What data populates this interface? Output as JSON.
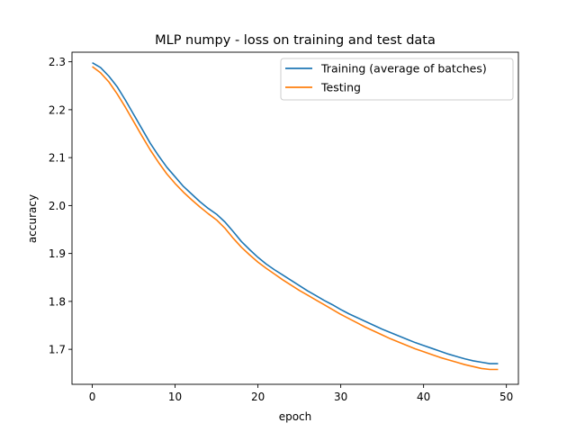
{
  "chart_data": {
    "type": "line",
    "title": "MLP numpy - loss on training and test data",
    "xlabel": "epoch",
    "ylabel": "accuracy",
    "xlim": [
      -2.45,
      51.45
    ],
    "ylim": [
      1.627,
      2.32
    ],
    "xticks": [
      0,
      10,
      20,
      30,
      40,
      50
    ],
    "yticks": [
      1.7,
      1.8,
      1.9,
      2.0,
      2.1,
      2.2,
      2.3
    ],
    "grid": false,
    "legend": "top-right",
    "x": [
      0,
      1,
      2,
      3,
      4,
      5,
      6,
      7,
      8,
      9,
      10,
      11,
      12,
      13,
      14,
      15,
      16,
      17,
      18,
      19,
      20,
      21,
      22,
      23,
      24,
      25,
      26,
      27,
      28,
      29,
      30,
      31,
      32,
      33,
      34,
      35,
      36,
      37,
      38,
      39,
      40,
      41,
      42,
      43,
      44,
      45,
      46,
      47,
      48,
      49
    ],
    "series": [
      {
        "name": "Training (average of batches)",
        "color": "#1f77b4",
        "values": [
          2.298,
          2.288,
          2.27,
          2.248,
          2.22,
          2.19,
          2.16,
          2.13,
          2.104,
          2.08,
          2.06,
          2.04,
          2.024,
          2.008,
          1.994,
          1.982,
          1.966,
          1.946,
          1.925,
          1.908,
          1.892,
          1.878,
          1.866,
          1.855,
          1.844,
          1.833,
          1.822,
          1.812,
          1.802,
          1.793,
          1.783,
          1.774,
          1.766,
          1.758,
          1.75,
          1.742,
          1.735,
          1.728,
          1.721,
          1.714,
          1.708,
          1.702,
          1.696,
          1.69,
          1.685,
          1.68,
          1.676,
          1.673,
          1.67,
          1.67
        ]
      },
      {
        "name": "Testing",
        "color": "#ff7f0e",
        "values": [
          2.29,
          2.277,
          2.258,
          2.233,
          2.205,
          2.175,
          2.145,
          2.116,
          2.09,
          2.066,
          2.046,
          2.028,
          2.012,
          1.997,
          1.983,
          1.97,
          1.953,
          1.932,
          1.913,
          1.897,
          1.882,
          1.869,
          1.857,
          1.845,
          1.834,
          1.823,
          1.813,
          1.803,
          1.793,
          1.783,
          1.773,
          1.764,
          1.755,
          1.746,
          1.738,
          1.73,
          1.722,
          1.715,
          1.708,
          1.701,
          1.695,
          1.689,
          1.683,
          1.678,
          1.673,
          1.668,
          1.664,
          1.66,
          1.658,
          1.658
        ]
      }
    ]
  }
}
